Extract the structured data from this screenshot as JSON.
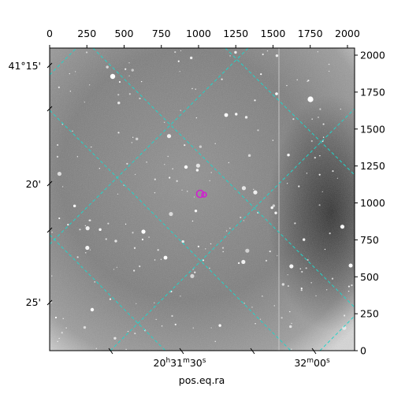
{
  "figure": {
    "x_axis_label": "pos.eq.ra",
    "pixel_x_ticks": [
      "0",
      "250",
      "500",
      "750",
      "1000",
      "1250",
      "1500",
      "1750",
      "2000"
    ],
    "pixel_y_ticks": [
      "0",
      "250",
      "500",
      "750",
      "1000",
      "1250",
      "1500",
      "1750",
      "2000"
    ],
    "dec_ticks": [
      "41°15'",
      "20'",
      "25'"
    ],
    "ra_ticks": [
      {
        "h": "20",
        "m": "31",
        "s": "30"
      },
      {
        "h": "",
        "m": "32",
        "s": "00"
      }
    ],
    "ra_tick_units": {
      "h": "h",
      "m": "m",
      "s": "s"
    },
    "grid_color": "#22d3c8",
    "marker_color": "#d020d0",
    "frame_color": "#000000"
  }
}
